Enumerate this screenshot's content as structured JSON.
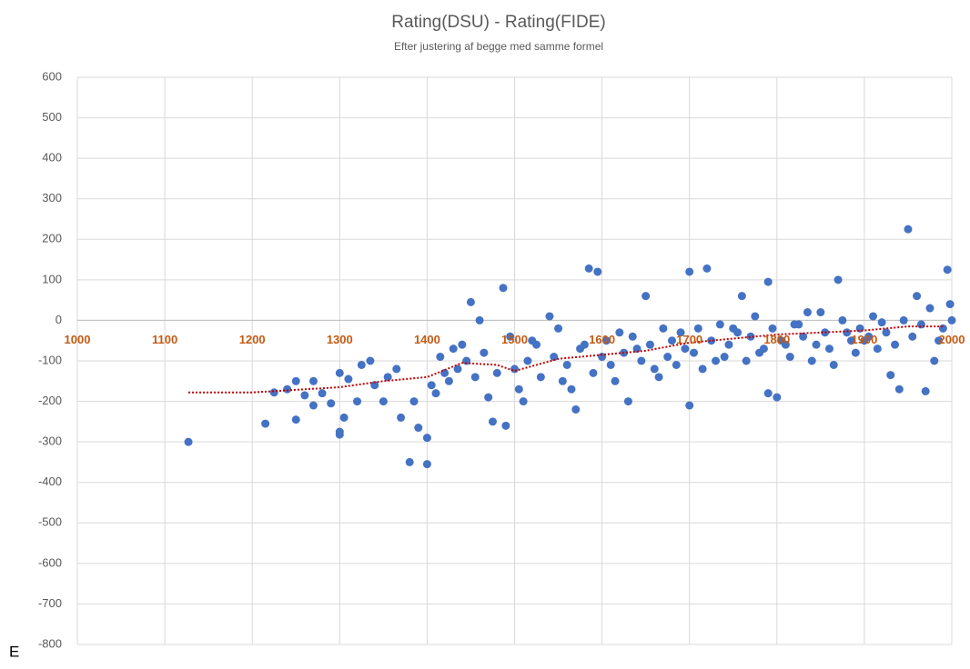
{
  "chart_data": {
    "type": "scatter",
    "title": "Rating(DSU) - Rating(FIDE)",
    "subtitle": "Efter justering af begge med samme formel",
    "annotation": "E",
    "xlim": [
      1000,
      2000
    ],
    "ylim": [
      -800,
      600
    ],
    "xticks": [
      1000,
      1100,
      1200,
      1300,
      1400,
      1500,
      1600,
      1700,
      1800,
      1900,
      2000
    ],
    "yticks": [
      -800,
      -700,
      -600,
      -500,
      -400,
      -300,
      -200,
      -100,
      0,
      100,
      200,
      300,
      400,
      500,
      600
    ],
    "grid": true,
    "series": [
      {
        "type": "scatter",
        "color": "#4472c4",
        "x": [
          1127,
          1215,
          1225,
          1240,
          1250,
          1250,
          1260,
          1270,
          1270,
          1280,
          1290,
          1300,
          1300,
          1300,
          1305,
          1310,
          1320,
          1325,
          1335,
          1340,
          1350,
          1355,
          1365,
          1370,
          1380,
          1385,
          1390,
          1400,
          1400,
          1410,
          1420,
          1430,
          1445,
          1450,
          1460,
          1475,
          1487,
          1490,
          1500,
          1510,
          1520,
          1540,
          1555,
          1570,
          1580,
          1585,
          1595,
          1600,
          1620,
          1630,
          1640,
          1650,
          1660,
          1680,
          1700,
          1700,
          1720,
          1730,
          1750,
          1760,
          1780,
          1790,
          1790,
          1800,
          1810,
          1820,
          1840,
          1850,
          1860,
          1870,
          1880,
          1900,
          1920,
          1930,
          1940,
          1950,
          1960,
          1970,
          1980,
          1995,
          1998,
          1405,
          1415,
          1425,
          1435,
          1440,
          1455,
          1465,
          1470,
          1480,
          1495,
          1505,
          1515,
          1525,
          1530,
          1545,
          1550,
          1560,
          1565,
          1575,
          1590,
          1605,
          1610,
          1615,
          1625,
          1635,
          1645,
          1655,
          1665,
          1670,
          1675,
          1685,
          1690,
          1695,
          1705,
          1710,
          1715,
          1725,
          1735,
          1740,
          1745,
          1755,
          1765,
          1770,
          1775,
          1785,
          1795,
          1805,
          1815,
          1825,
          1830,
          1835,
          1845,
          1855,
          1865,
          1875,
          1885,
          1890,
          1895,
          1905,
          1910,
          1915,
          1925,
          1935,
          1945,
          1955,
          1965,
          1975,
          1985,
          1990,
          2000
        ],
        "y": [
          -300,
          -255,
          -178,
          -170,
          -150,
          -245,
          -185,
          -150,
          -210,
          -180,
          -205,
          -130,
          -275,
          -282,
          -240,
          -145,
          -200,
          -110,
          -100,
          -160,
          -200,
          -140,
          -120,
          -240,
          -350,
          -200,
          -265,
          -290,
          -355,
          -180,
          -130,
          -70,
          -100,
          45,
          0,
          -250,
          80,
          -260,
          -120,
          -200,
          -50,
          10,
          -150,
          -220,
          -60,
          128,
          120,
          -90,
          -30,
          -200,
          -70,
          60,
          -120,
          -50,
          120,
          -210,
          128,
          -100,
          -20,
          60,
          -80,
          95,
          -180,
          -190,
          -60,
          -10,
          -100,
          20,
          -70,
          100,
          -30,
          -50,
          -5,
          -135,
          -170,
          225,
          60,
          -175,
          -100,
          125,
          40,
          -160,
          -90,
          -150,
          -120,
          -60,
          -140,
          -80,
          -190,
          -130,
          -40,
          -170,
          -100,
          -60,
          -140,
          -90,
          -20,
          -110,
          -170,
          -70,
          -130,
          -50,
          -110,
          -150,
          -80,
          -40,
          -100,
          -60,
          -140,
          -20,
          -90,
          -110,
          -30,
          -70,
          -80,
          -20,
          -120,
          -50,
          -10,
          -90,
          -60,
          -30,
          -100,
          -40,
          10,
          -70,
          -20,
          -50,
          -90,
          -10,
          -40,
          20,
          -60,
          -30,
          -110,
          0,
          -50,
          -80,
          -20,
          -40,
          10,
          -70,
          -30,
          -60,
          0,
          -40,
          -10,
          30,
          -50,
          -20,
          0
        ],
        "axis_note": null
      },
      {
        "type": "line",
        "color": "#c00000",
        "x": [
          1127,
          1200,
          1300,
          1350,
          1400,
          1440,
          1480,
          1500,
          1550,
          1600,
          1650,
          1700,
          1750,
          1800,
          1850,
          1900,
          1950,
          1990
        ],
        "y": [
          -178,
          -178,
          -165,
          -150,
          -140,
          -105,
          -110,
          -125,
          -95,
          -85,
          -75,
          -55,
          -45,
          -35,
          -30,
          -25,
          -15,
          -15
        ]
      }
    ]
  }
}
